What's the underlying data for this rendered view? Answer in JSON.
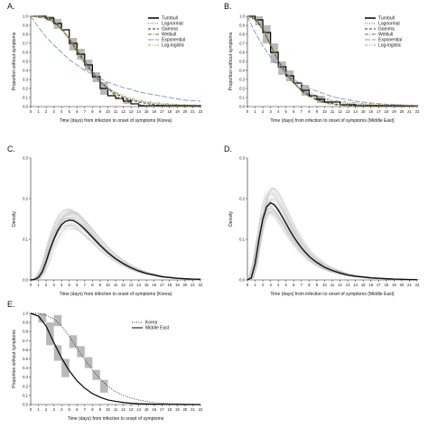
{
  "chart_data": [
    {
      "panel": "A.",
      "type": "line",
      "xlabel": "Time (days) from infection to onset of symptoms (Korea)",
      "ylabel": "Proportion without symptoms",
      "xlim": [
        0,
        22
      ],
      "ylim": [
        0,
        1
      ],
      "xticks": [
        "0",
        "1",
        "2",
        "3",
        "4",
        "5",
        "6",
        "7",
        "8",
        "9",
        "10",
        "11",
        "12",
        "13",
        "14",
        "15",
        "16",
        "17",
        "18",
        "19",
        "20",
        "21",
        "22"
      ],
      "yticks": [
        "0.0",
        "0.1",
        "0.2",
        "0.3",
        "0.4",
        "0.5",
        "0.6",
        "0.7",
        "0.8",
        "0.9",
        "1.0"
      ],
      "legend_position": "top-right",
      "turnbull_boxes": [
        {
          "x0": 2,
          "x1": 3,
          "y0": 0.95,
          "y1": 1.0
        },
        {
          "x0": 3,
          "x1": 4,
          "y0": 0.86,
          "y1": 0.97
        },
        {
          "x0": 5,
          "x1": 6,
          "y0": 0.62,
          "y1": 0.76
        },
        {
          "x0": 6,
          "x1": 7,
          "y0": 0.52,
          "y1": 0.64
        },
        {
          "x0": 7,
          "x1": 8,
          "y0": 0.4,
          "y1": 0.52
        },
        {
          "x0": 8,
          "x1": 9,
          "y0": 0.27,
          "y1": 0.38
        },
        {
          "x0": 9,
          "x1": 10,
          "y0": 0.13,
          "y1": 0.27
        },
        {
          "x0": 12,
          "x1": 13,
          "y0": 0.03,
          "y1": 0.08
        }
      ],
      "turnbull_steps": {
        "x": [
          0,
          2,
          3,
          4,
          5,
          6,
          7,
          8,
          9,
          10,
          11,
          12,
          13,
          14,
          22
        ],
        "y": [
          1.0,
          0.98,
          0.92,
          0.85,
          0.7,
          0.58,
          0.46,
          0.33,
          0.2,
          0.12,
          0.09,
          0.06,
          0.03,
          0.01,
          0.0
        ]
      },
      "series": [
        {
          "name": "Turnbull",
          "style": "solid-thick",
          "color": "#000000"
        },
        {
          "name": "Lognormal",
          "style": "dotted",
          "color": "#555555",
          "x": [
            0,
            1,
            2,
            3,
            4,
            5,
            6,
            7,
            8,
            9,
            10,
            11,
            12,
            13,
            14,
            16,
            18,
            20,
            22
          ],
          "y": [
            1.0,
            1.0,
            0.99,
            0.95,
            0.86,
            0.74,
            0.6,
            0.47,
            0.36,
            0.27,
            0.2,
            0.15,
            0.11,
            0.08,
            0.06,
            0.035,
            0.02,
            0.012,
            0.008
          ]
        },
        {
          "name": "Gamma",
          "style": "dashed",
          "color": "#333333",
          "x": [
            0,
            1,
            2,
            3,
            4,
            5,
            6,
            7,
            8,
            9,
            10,
            11,
            12,
            13,
            14,
            16,
            18,
            20,
            22
          ],
          "y": [
            1.0,
            1.0,
            0.98,
            0.94,
            0.86,
            0.75,
            0.62,
            0.49,
            0.38,
            0.28,
            0.2,
            0.14,
            0.1,
            0.07,
            0.05,
            0.02,
            0.01,
            0.005,
            0.0
          ]
        },
        {
          "name": "Weibull",
          "style": "dashdot",
          "color": "#8b6a2b",
          "x": [
            0,
            1,
            2,
            3,
            4,
            5,
            6,
            7,
            8,
            9,
            10,
            11,
            12,
            13,
            14,
            16,
            18,
            20,
            22
          ],
          "y": [
            1.0,
            0.99,
            0.97,
            0.93,
            0.86,
            0.76,
            0.64,
            0.51,
            0.39,
            0.28,
            0.19,
            0.12,
            0.07,
            0.04,
            0.02,
            0.005,
            0.0,
            0.0,
            0.0
          ]
        },
        {
          "name": "Exponential",
          "style": "longdash",
          "color": "#7a98b8",
          "x": [
            0,
            1,
            2,
            3,
            4,
            5,
            6,
            7,
            8,
            9,
            10,
            11,
            12,
            13,
            14,
            16,
            18,
            20,
            22
          ],
          "y": [
            1.0,
            0.88,
            0.77,
            0.68,
            0.6,
            0.52,
            0.46,
            0.4,
            0.36,
            0.31,
            0.27,
            0.24,
            0.21,
            0.19,
            0.16,
            0.13,
            0.1,
            0.07,
            0.06
          ]
        },
        {
          "name": "Log-logistic",
          "style": "twodash",
          "color": "#9aa66a",
          "x": [
            0,
            1,
            2,
            3,
            4,
            5,
            6,
            7,
            8,
            9,
            10,
            11,
            12,
            13,
            14,
            16,
            18,
            20,
            22
          ],
          "y": [
            1.0,
            1.0,
            0.99,
            0.95,
            0.87,
            0.75,
            0.61,
            0.48,
            0.37,
            0.28,
            0.21,
            0.16,
            0.12,
            0.09,
            0.07,
            0.045,
            0.03,
            0.02,
            0.015
          ]
        }
      ]
    },
    {
      "panel": "B.",
      "type": "line",
      "xlabel": "Time (days) from infection to onset of symptoms (Middle East)",
      "ylabel": "Proportion without symptoms",
      "xlim": [
        0,
        22
      ],
      "ylim": [
        0,
        1
      ],
      "xticks": [
        "0",
        "1",
        "2",
        "3",
        "4",
        "5",
        "6",
        "7",
        "8",
        "9",
        "10",
        "11",
        "12",
        "13",
        "14",
        "15",
        "16",
        "17",
        "18",
        "19",
        "20",
        "21",
        "22"
      ],
      "yticks": [
        "0.0",
        "0.1",
        "0.2",
        "0.3",
        "0.4",
        "0.5",
        "0.6",
        "0.7",
        "0.8",
        "0.9",
        "1.0"
      ],
      "legend_position": "top-right",
      "turnbull_boxes": [
        {
          "x0": 1,
          "x1": 2,
          "y0": 0.9,
          "y1": 1.0
        },
        {
          "x0": 2,
          "x1": 3,
          "y0": 0.7,
          "y1": 0.9
        },
        {
          "x0": 3,
          "x1": 4,
          "y0": 0.48,
          "y1": 0.7
        },
        {
          "x0": 4,
          "x1": 5,
          "y0": 0.35,
          "y1": 0.5
        },
        {
          "x0": 5,
          "x1": 6,
          "y0": 0.28,
          "y1": 0.4
        },
        {
          "x0": 7,
          "x1": 8,
          "y0": 0.12,
          "y1": 0.24
        },
        {
          "x0": 9,
          "x1": 10,
          "y0": 0.04,
          "y1": 0.12
        }
      ],
      "turnbull_steps": {
        "x": [
          0,
          1,
          2,
          3,
          4,
          5,
          6,
          7,
          8,
          9,
          10,
          12,
          14,
          22
        ],
        "y": [
          1.0,
          0.96,
          0.82,
          0.6,
          0.44,
          0.34,
          0.26,
          0.18,
          0.12,
          0.08,
          0.05,
          0.02,
          0.01,
          0.0
        ]
      },
      "series": [
        {
          "name": "Turnbull",
          "style": "solid-thick",
          "color": "#000000"
        },
        {
          "name": "Lognormal",
          "style": "dotted",
          "color": "#555555",
          "x": [
            0,
            1,
            2,
            3,
            4,
            5,
            6,
            7,
            8,
            9,
            10,
            11,
            12,
            13,
            14,
            16,
            18,
            20,
            22
          ],
          "y": [
            1.0,
            0.98,
            0.87,
            0.68,
            0.5,
            0.36,
            0.26,
            0.19,
            0.14,
            0.1,
            0.08,
            0.06,
            0.045,
            0.035,
            0.028,
            0.018,
            0.012,
            0.008,
            0.006
          ]
        },
        {
          "name": "Gamma",
          "style": "dashed",
          "color": "#333333",
          "x": [
            0,
            1,
            2,
            3,
            4,
            5,
            6,
            7,
            8,
            9,
            10,
            11,
            12,
            13,
            14,
            16,
            18,
            20,
            22
          ],
          "y": [
            1.0,
            0.97,
            0.86,
            0.68,
            0.51,
            0.37,
            0.26,
            0.18,
            0.12,
            0.08,
            0.05,
            0.035,
            0.022,
            0.014,
            0.009,
            0.004,
            0.002,
            0.0,
            0.0
          ]
        },
        {
          "name": "Weibull",
          "style": "dashdot",
          "color": "#8b6a2b",
          "x": [
            0,
            1,
            2,
            3,
            4,
            5,
            6,
            7,
            8,
            9,
            10,
            11,
            12,
            13,
            14,
            16,
            18,
            20,
            22
          ],
          "y": [
            1.0,
            0.96,
            0.85,
            0.68,
            0.51,
            0.37,
            0.26,
            0.17,
            0.11,
            0.07,
            0.04,
            0.025,
            0.014,
            0.008,
            0.004,
            0.001,
            0.0,
            0.0,
            0.0
          ]
        },
        {
          "name": "Exponential",
          "style": "longdash",
          "color": "#7a98b8",
          "x": [
            0,
            1,
            2,
            3,
            4,
            5,
            6,
            7,
            8,
            9,
            10,
            11,
            12,
            13,
            14,
            16,
            18,
            20,
            22
          ],
          "y": [
            1.0,
            0.82,
            0.67,
            0.55,
            0.45,
            0.37,
            0.3,
            0.25,
            0.2,
            0.17,
            0.14,
            0.11,
            0.09,
            0.075,
            0.06,
            0.04,
            0.027,
            0.018,
            0.012
          ]
        },
        {
          "name": "Log-logistic",
          "style": "twodash",
          "color": "#9aa66a",
          "x": [
            0,
            1,
            2,
            3,
            4,
            5,
            6,
            7,
            8,
            9,
            10,
            11,
            12,
            13,
            14,
            16,
            18,
            20,
            22
          ],
          "y": [
            1.0,
            0.98,
            0.88,
            0.7,
            0.52,
            0.38,
            0.28,
            0.21,
            0.16,
            0.12,
            0.095,
            0.075,
            0.06,
            0.05,
            0.042,
            0.03,
            0.022,
            0.017,
            0.013
          ]
        }
      ]
    },
    {
      "panel": "C.",
      "type": "line",
      "xlabel": "Time (days) from infection to onset of symptoms (Korea)",
      "ylabel": "Density",
      "xlim": [
        0,
        22
      ],
      "ylim": [
        0,
        0.3
      ],
      "xticks": [
        "0",
        "1",
        "2",
        "3",
        "4",
        "5",
        "6",
        "7",
        "8",
        "9",
        "10",
        "11",
        "12",
        "13",
        "14",
        "15",
        "16",
        "17",
        "18",
        "19",
        "20",
        "21",
        "22"
      ],
      "yticks": [
        "0.0",
        "0.1",
        "0.2",
        "0.3"
      ],
      "mean_curve": {
        "x": [
          0,
          0.5,
          1,
          1.5,
          2,
          2.5,
          3,
          3.5,
          4,
          4.5,
          5,
          5.5,
          6,
          6.5,
          7,
          7.5,
          8,
          8.5,
          9,
          9.5,
          10,
          11,
          12,
          13,
          14,
          15,
          16,
          17,
          18,
          19,
          20,
          21,
          22
        ],
        "y": [
          0,
          0.001,
          0.006,
          0.02,
          0.045,
          0.075,
          0.1,
          0.121,
          0.136,
          0.144,
          0.147,
          0.146,
          0.141,
          0.134,
          0.125,
          0.115,
          0.105,
          0.095,
          0.085,
          0.076,
          0.067,
          0.052,
          0.04,
          0.03,
          0.022,
          0.016,
          0.012,
          0.008,
          0.006,
          0.004,
          0.003,
          0.002,
          0.0015
        ]
      },
      "sample_curves": 40
    },
    {
      "panel": "D.",
      "type": "line",
      "xlabel": "Time (days) from infection to onset of symptoms (Middle East)",
      "ylabel": "Density",
      "xlim": [
        0,
        22
      ],
      "ylim": [
        0,
        0.3
      ],
      "xticks": [
        "0",
        "1",
        "2",
        "3",
        "4",
        "5",
        "6",
        "7",
        "8",
        "9",
        "10",
        "11",
        "12",
        "13",
        "14",
        "15",
        "16",
        "17",
        "18",
        "19",
        "20",
        "21",
        "22"
      ],
      "yticks": [
        "0.0",
        "0.1",
        "0.2",
        "0.3"
      ],
      "mean_curve": {
        "x": [
          0,
          0.5,
          1,
          1.5,
          2,
          2.5,
          3,
          3.5,
          4,
          4.5,
          5,
          5.5,
          6,
          6.5,
          7,
          7.5,
          8,
          8.5,
          9,
          9.5,
          10,
          11,
          12,
          13,
          14,
          15,
          16,
          17,
          18,
          19,
          20,
          21,
          22
        ],
        "y": [
          0,
          0.005,
          0.04,
          0.1,
          0.15,
          0.18,
          0.19,
          0.185,
          0.172,
          0.156,
          0.139,
          0.122,
          0.106,
          0.092,
          0.079,
          0.068,
          0.058,
          0.05,
          0.043,
          0.037,
          0.031,
          0.023,
          0.017,
          0.012,
          0.009,
          0.007,
          0.005,
          0.004,
          0.003,
          0.002,
          0.0015,
          0.001,
          0.0008
        ]
      },
      "sample_curves": 40
    },
    {
      "panel": "E.",
      "type": "line",
      "xlabel": "Time (days) from infection to onset of symptoms",
      "ylabel": "Proportion without symptoms",
      "xlim": [
        0,
        22
      ],
      "ylim": [
        0,
        1
      ],
      "xticks": [
        "0",
        "1",
        "2",
        "3",
        "4",
        "5",
        "6",
        "7",
        "8",
        "9",
        "10",
        "11",
        "12",
        "13",
        "14",
        "15",
        "16",
        "17",
        "18",
        "19",
        "20",
        "21",
        "22"
      ],
      "yticks": [
        "0.0",
        "0.1",
        "0.2",
        "0.3",
        "0.4",
        "0.5",
        "0.6",
        "0.7",
        "0.8",
        "0.9",
        "1.0"
      ],
      "legend_position": "top-right",
      "turnbull_boxes": [
        {
          "x0": 1,
          "x1": 2,
          "y0": 0.9,
          "y1": 1.0
        },
        {
          "x0": 2,
          "x1": 3,
          "y0": 0.65,
          "y1": 0.9
        },
        {
          "x0": 3,
          "x1": 4,
          "y0": 0.48,
          "y1": 0.65
        },
        {
          "x0": 4,
          "x1": 5,
          "y0": 0.3,
          "y1": 0.5
        },
        {
          "x0": 3,
          "x1": 4,
          "y0": 0.86,
          "y1": 0.98
        },
        {
          "x0": 5,
          "x1": 6,
          "y0": 0.62,
          "y1": 0.76
        },
        {
          "x0": 6,
          "x1": 7,
          "y0": 0.52,
          "y1": 0.64
        },
        {
          "x0": 7,
          "x1": 8,
          "y0": 0.4,
          "y1": 0.52
        },
        {
          "x0": 8,
          "x1": 9,
          "y0": 0.27,
          "y1": 0.38
        },
        {
          "x0": 9,
          "x1": 10,
          "y0": 0.13,
          "y1": 0.27
        }
      ],
      "series": [
        {
          "name": "Korea",
          "style": "dotted",
          "color": "#333333",
          "x": [
            0,
            1,
            2,
            3,
            4,
            5,
            6,
            7,
            8,
            9,
            10,
            11,
            12,
            13,
            14,
            16,
            18,
            20,
            22
          ],
          "y": [
            1.0,
            1.0,
            0.98,
            0.94,
            0.86,
            0.75,
            0.62,
            0.49,
            0.38,
            0.28,
            0.2,
            0.14,
            0.1,
            0.07,
            0.05,
            0.02,
            0.01,
            0.005,
            0.0
          ]
        },
        {
          "name": "Middle East",
          "style": "solid",
          "color": "#000000",
          "x": [
            0,
            1,
            2,
            3,
            4,
            5,
            6,
            7,
            8,
            9,
            10,
            11,
            12,
            13,
            14,
            16,
            18,
            20,
            22
          ],
          "y": [
            1.0,
            0.97,
            0.86,
            0.68,
            0.51,
            0.37,
            0.26,
            0.18,
            0.12,
            0.08,
            0.05,
            0.035,
            0.022,
            0.014,
            0.009,
            0.004,
            0.002,
            0.0,
            0.0
          ]
        }
      ]
    }
  ]
}
